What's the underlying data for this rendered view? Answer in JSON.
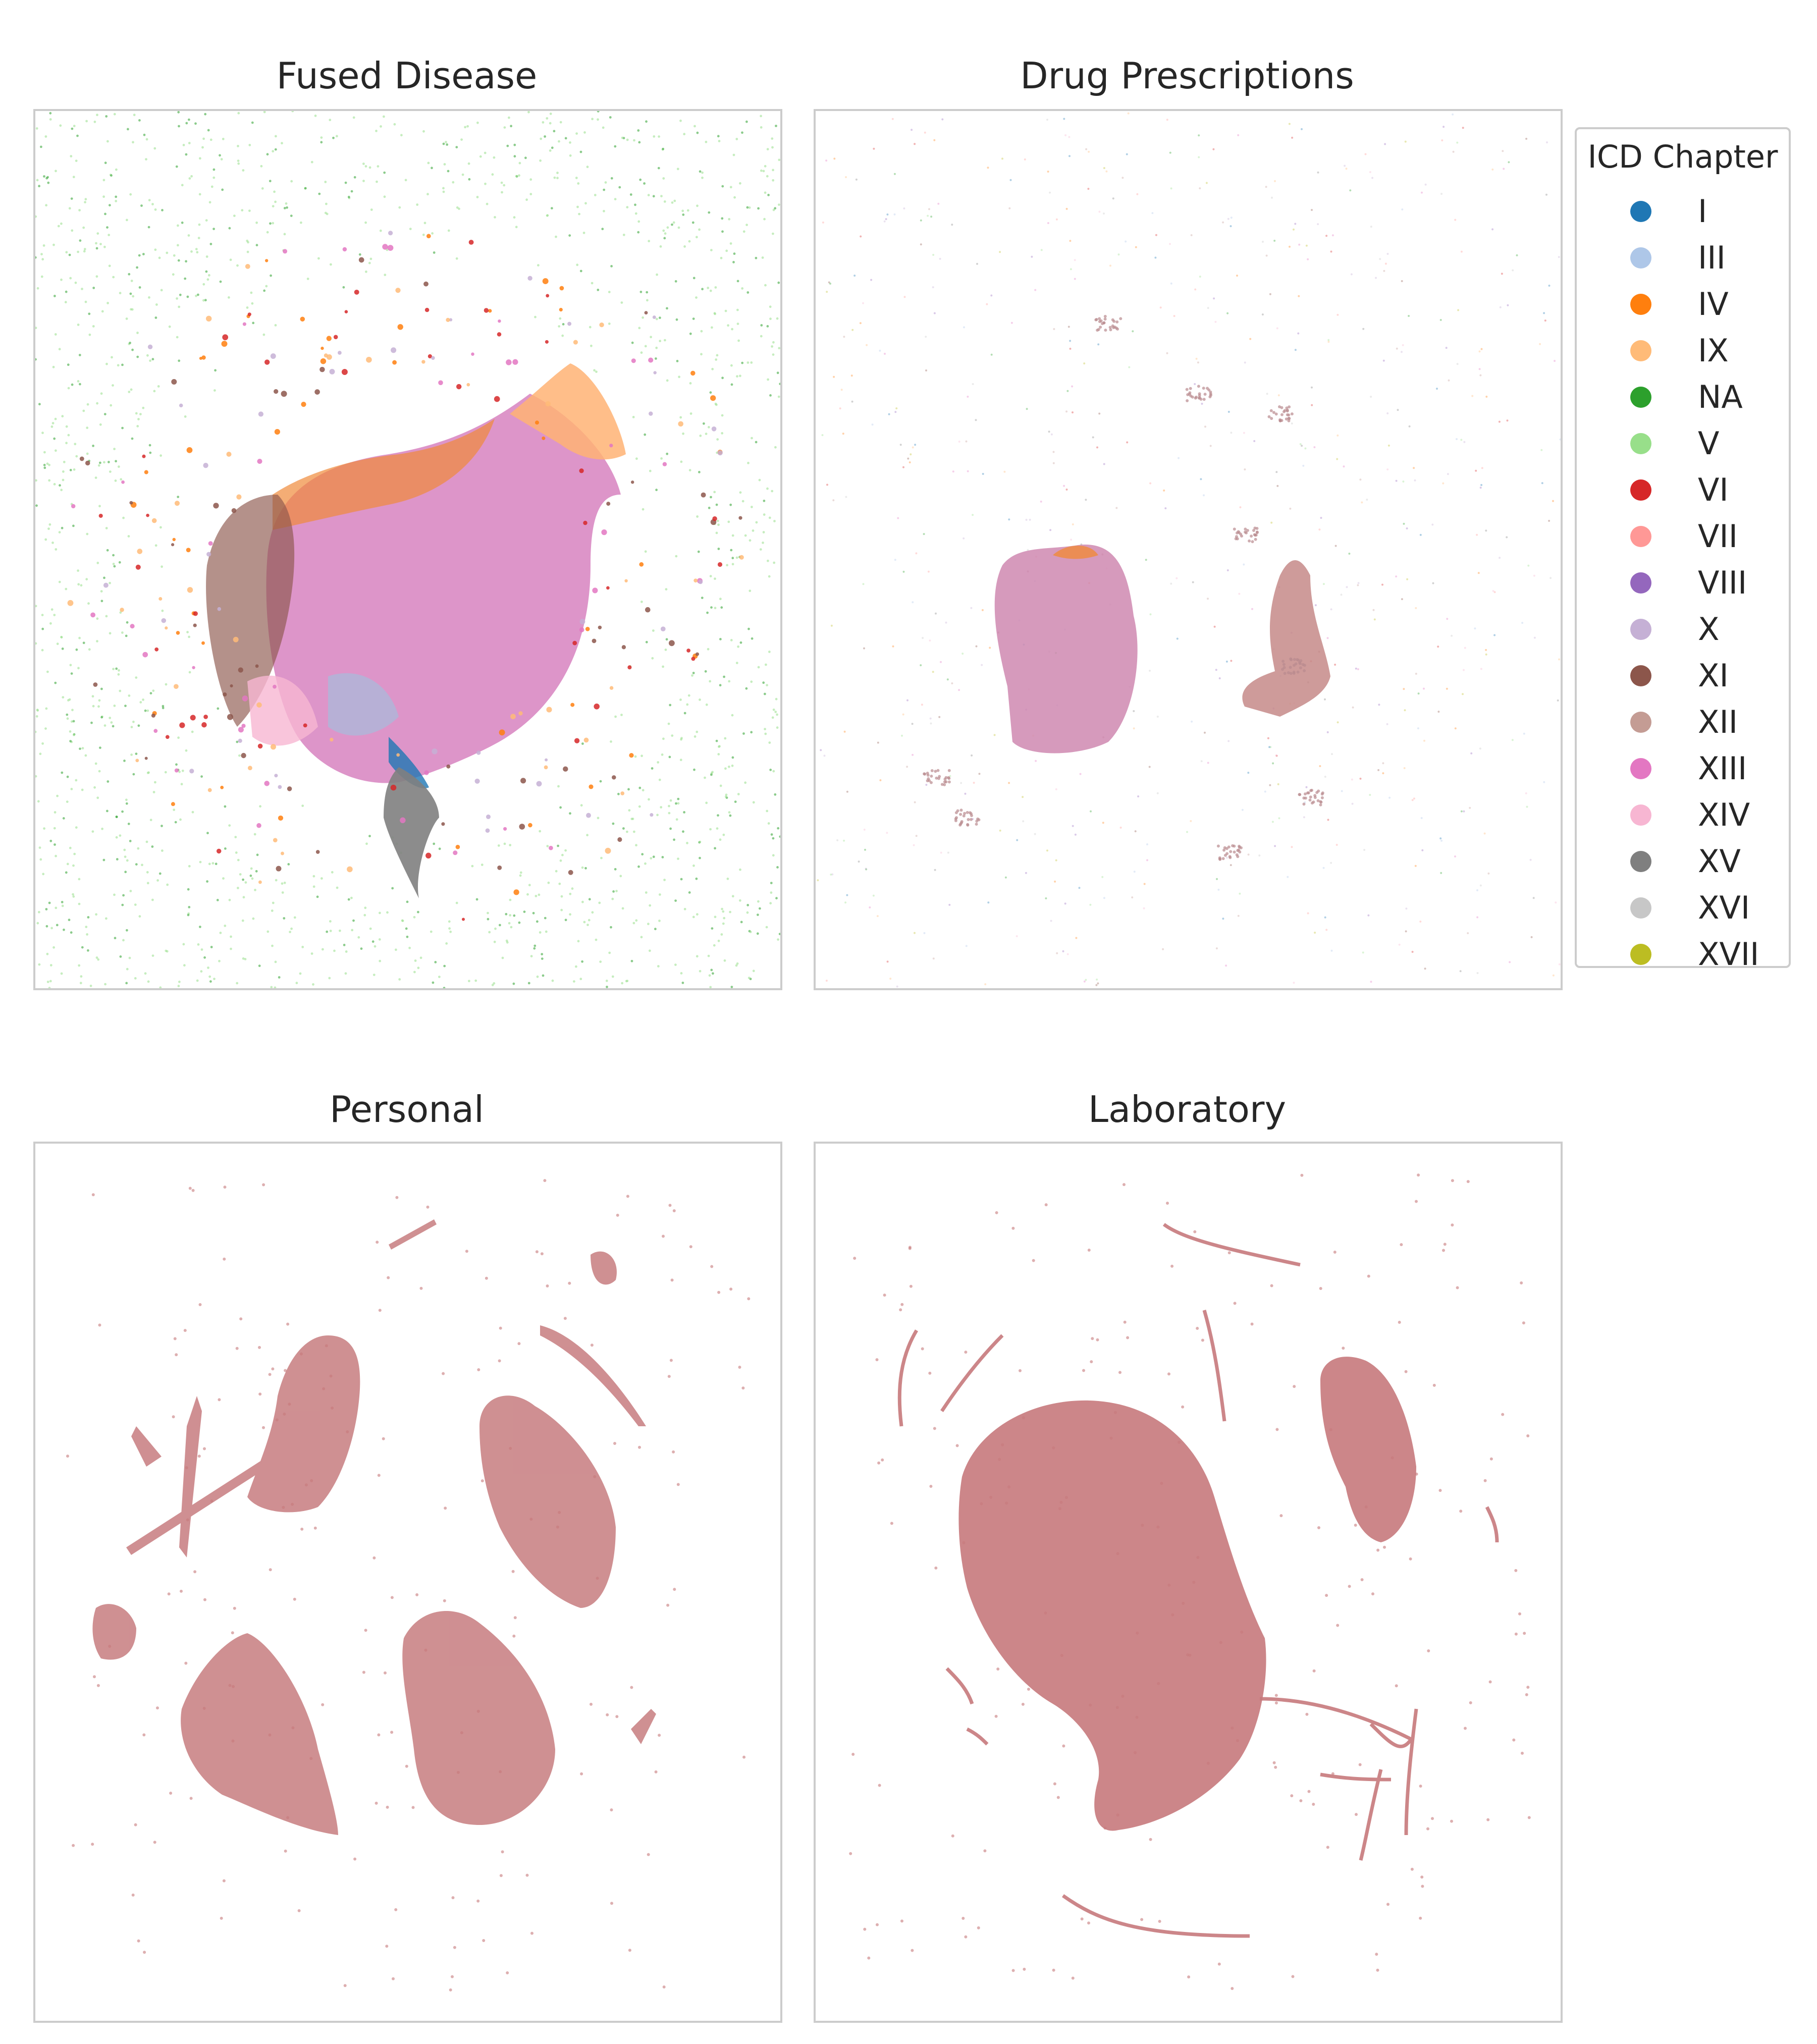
{
  "chart_data": [
    {
      "type": "scatter",
      "title": "Fused Disease",
      "xlabel": "",
      "ylabel": "",
      "axes_visible": false,
      "grid": false,
      "legend": null,
      "description_of_data": "UMAP-style embedding; dense central cloud colored mostly XIII/IV/XI with orange IX tip, gray XV tail at bottom, blue I streak; sparse green NA/V points forming an outer ring"
    },
    {
      "type": "scatter",
      "title": "Drug Prescriptions",
      "xlabel": "",
      "ylabel": "",
      "axes_visible": false,
      "grid": false,
      "legend": "right",
      "description_of_data": "Two main clusters: large pink/purple blob at center-left and smaller reddish-brown blob at right; sparse small clusters scattered around"
    },
    {
      "type": "scatter",
      "title": "Personal",
      "xlabel": "",
      "ylabel": "",
      "axes_visible": false,
      "grid": false,
      "legend": null,
      "description_of_data": "Several large mixed-color (rose/brown) leaf-shaped clusters plus thin filaments and small islands"
    },
    {
      "type": "scatter",
      "title": "Laboratory",
      "xlabel": "",
      "ylabel": "",
      "axes_visible": false,
      "grid": false,
      "legend": null,
      "description_of_data": "One very large central rose-colored cluster, one medium cluster at upper right, and many thin arc-shaped filaments around the edge"
    }
  ],
  "legend": {
    "title": "ICD Chapter",
    "items": [
      {
        "label": "I",
        "color": "#1f77b4"
      },
      {
        "label": "III",
        "color": "#aec7e8"
      },
      {
        "label": "IV",
        "color": "#ff7f0e"
      },
      {
        "label": "IX",
        "color": "#ffbb78"
      },
      {
        "label": "NA",
        "color": "#2ca02c"
      },
      {
        "label": "V",
        "color": "#98df8a"
      },
      {
        "label": "VI",
        "color": "#d62728"
      },
      {
        "label": "VII",
        "color": "#ff9896"
      },
      {
        "label": "VIII",
        "color": "#9467bd"
      },
      {
        "label": "X",
        "color": "#c5b0d5"
      },
      {
        "label": "XI",
        "color": "#8c564b"
      },
      {
        "label": "XII",
        "color": "#c49c94"
      },
      {
        "label": "XIII",
        "color": "#e377c2"
      },
      {
        "label": "XIV",
        "color": "#f7b6d2"
      },
      {
        "label": "XV",
        "color": "#7f7f7f"
      },
      {
        "label": "XVI",
        "color": "#c7c7c7"
      },
      {
        "label": "XVII",
        "color": "#bcbd22"
      }
    ]
  }
}
